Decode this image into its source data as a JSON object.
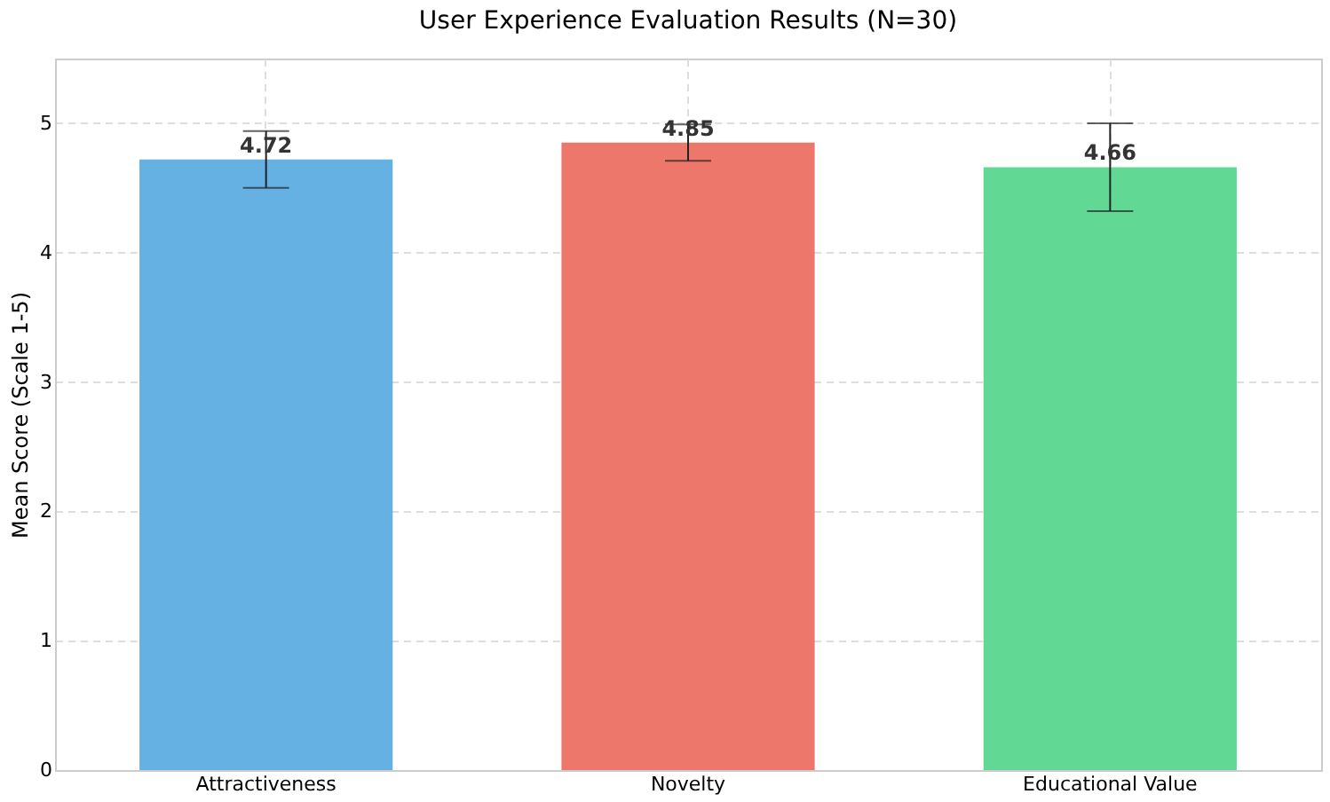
{
  "chart_data": {
    "type": "bar",
    "title": "User Experience Evaluation Results (N=30)",
    "ylabel": "Mean Score (Scale 1-5)",
    "categories": [
      "Attractiveness",
      "Novelty",
      "Educational Value"
    ],
    "values": [
      4.72,
      4.85,
      4.66
    ],
    "colors": [
      "#5dade2",
      "#ec7063",
      "#58d68d"
    ],
    "errors": [
      0.22,
      0.14,
      0.34
    ],
    "ylim": [
      0,
      5.5
    ],
    "yticks": [
      0,
      1,
      2,
      3,
      4,
      5
    ],
    "grid": true,
    "data_labels": true
  }
}
